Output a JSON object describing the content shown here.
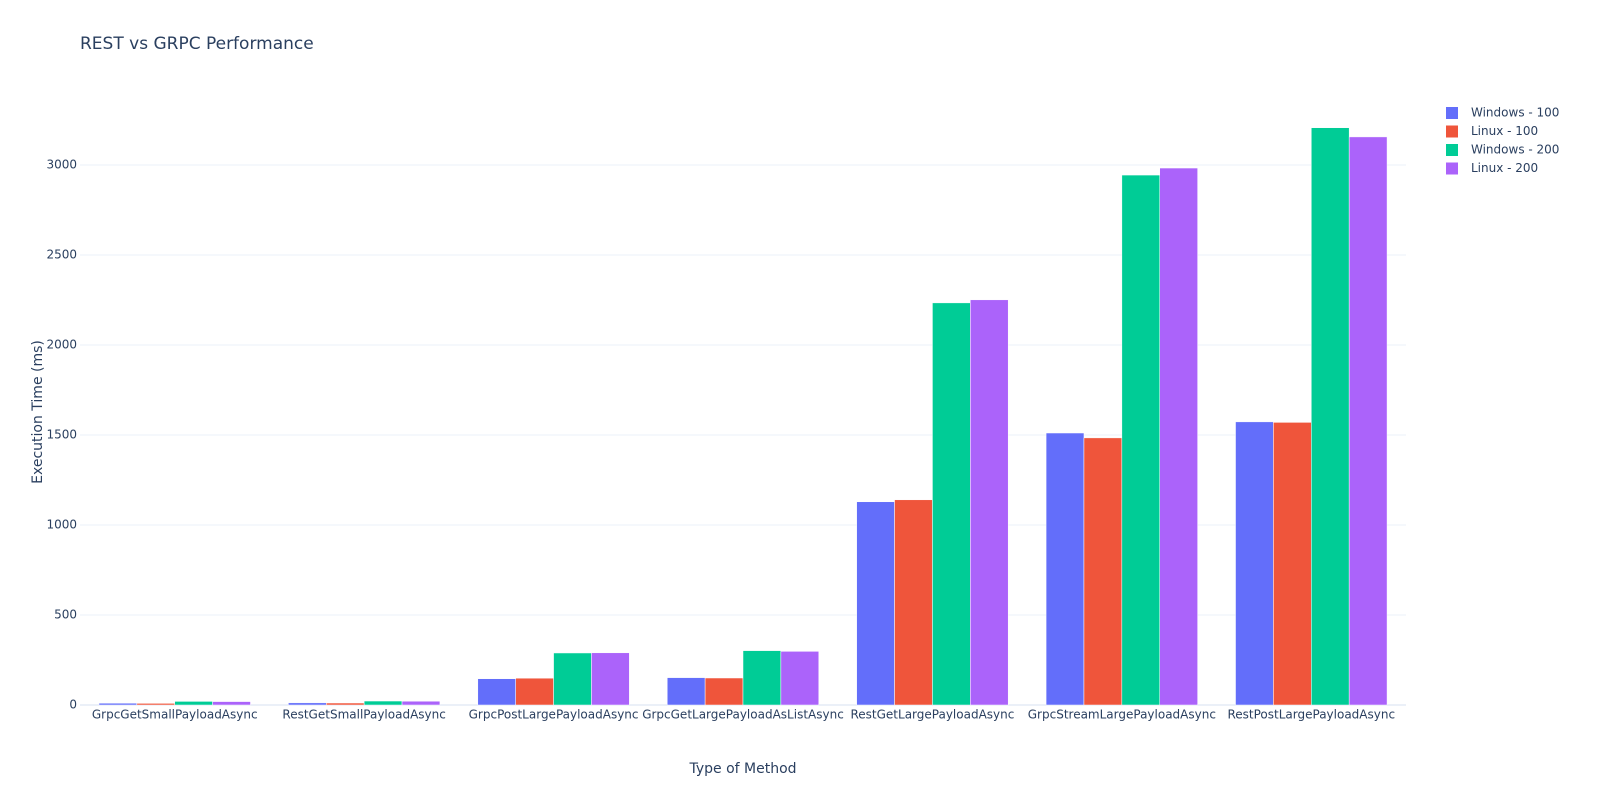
{
  "chart_data": {
    "type": "bar",
    "title": "REST vs GRPC Performance",
    "x_label": "Type of Method",
    "y_label": "Execution Time (ms)",
    "categories": [
      "GrpcGetSmallPayloadAsync",
      "RestGetSmallPayloadAsync",
      "GrpcPostLargePayloadAsync",
      "GrpcGetLargePayloadAsListAsync",
      "RestGetLargePayloadAsync",
      "GrpcStreamLargePayloadAsync",
      "RestPostLargePayloadAsync"
    ],
    "series": [
      {
        "name": "Windows - 100",
        "color": "#636efa",
        "values": [
          10,
          12,
          146,
          152,
          1129,
          1511,
          1573
        ]
      },
      {
        "name": "Linux - 100",
        "color": "#ef553b",
        "values": [
          9,
          11,
          149,
          150,
          1140,
          1484,
          1570
        ]
      },
      {
        "name": "Windows - 200",
        "color": "#00cc96",
        "values": [
          20,
          22,
          289,
          302,
          2234,
          2944,
          3207
        ]
      },
      {
        "name": "Linux - 200",
        "color": "#ab63fa",
        "values": [
          19,
          21,
          290,
          298,
          2251,
          2983,
          3156
        ]
      }
    ],
    "ylim": [
      0,
      3361
    ],
    "yticks": [
      0,
      500,
      1000,
      1500,
      2000,
      2500,
      3000
    ],
    "grid": true,
    "legend": "right"
  }
}
